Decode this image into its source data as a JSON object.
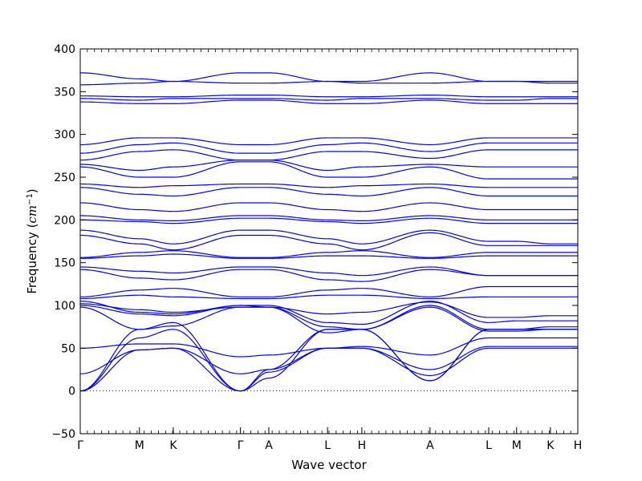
{
  "chart_data": {
    "type": "line",
    "title": "",
    "xlabel": "Wave vector",
    "ylabel_text": "Frequency (",
    "ylabel_unit_base": "cm",
    "ylabel_unit_exp": "−1",
    "ylabel_close": ")",
    "ylim": [
      -50,
      400
    ],
    "yticks": [
      -50,
      0,
      50,
      100,
      150,
      200,
      250,
      300,
      350,
      400
    ],
    "grid": false,
    "legend": "none",
    "series_color": "#0000ff",
    "zero_reference_line": 0,
    "xlim": [
      0,
      1
    ],
    "high_symmetry_points": [
      {
        "label": "Γ",
        "x": 0.0
      },
      {
        "label": "M",
        "x": 0.119
      },
      {
        "label": "K",
        "x": 0.187
      },
      {
        "label": "Γ",
        "x": 0.322
      },
      {
        "label": "A",
        "x": 0.379
      },
      {
        "label": "L",
        "x": 0.497
      },
      {
        "label": "H",
        "x": 0.566
      },
      {
        "label": "A",
        "x": 0.703
      },
      {
        "label": "L",
        "x": 0.821
      },
      {
        "label": "M",
        "x": 0.877
      },
      {
        "label": "K",
        "x": 0.945
      },
      {
        "label": "H",
        "x": 1.0
      }
    ],
    "minor_tick_count": 70,
    "bands": [
      [
        0,
        72,
        80,
        0,
        15,
        72,
        72,
        12,
        72,
        72,
        72,
        72
      ],
      [
        0,
        62,
        72,
        0,
        25,
        72,
        72,
        12,
        72,
        72,
        72,
        72
      ],
      [
        0,
        48,
        50,
        0,
        22,
        50,
        50,
        18,
        50,
        50,
        50,
        50
      ],
      [
        20,
        48,
        50,
        20,
        25,
        50,
        50,
        25,
        52,
        52,
        52,
        52
      ],
      [
        50,
        55,
        55,
        40,
        42,
        50,
        52,
        42,
        62,
        62,
        62,
        62
      ],
      [
        98,
        72,
        76,
        98,
        98,
        68,
        72,
        98,
        70,
        70,
        72,
        72
      ],
      [
        100,
        90,
        88,
        100,
        98,
        75,
        72,
        100,
        72,
        72,
        75,
        75
      ],
      [
        105,
        92,
        90,
        100,
        100,
        80,
        78,
        105,
        80,
        82,
        82,
        82
      ],
      [
        102,
        95,
        92,
        98,
        98,
        90,
        92,
        104,
        86,
        86,
        88,
        88
      ],
      [
        110,
        118,
        120,
        110,
        110,
        118,
        120,
        110,
        122,
        122,
        122,
        122
      ],
      [
        108,
        112,
        110,
        108,
        108,
        112,
        112,
        108,
        110,
        110,
        110,
        110
      ],
      [
        142,
        132,
        130,
        142,
        142,
        130,
        128,
        142,
        135,
        135,
        135,
        135
      ],
      [
        145,
        140,
        138,
        145,
        145,
        138,
        135,
        145,
        135,
        135,
        135,
        135
      ],
      [
        155,
        158,
        160,
        155,
        155,
        158,
        158,
        155,
        158,
        158,
        158,
        158
      ],
      [
        156,
        162,
        164,
        156,
        156,
        162,
        164,
        156,
        162,
        162,
        162,
        162
      ],
      [
        182,
        172,
        165,
        182,
        182,
        172,
        165,
        185,
        170,
        170,
        170,
        170
      ],
      [
        188,
        178,
        172,
        188,
        188,
        178,
        172,
        188,
        175,
        175,
        172,
        172
      ],
      [
        200,
        198,
        196,
        202,
        202,
        198,
        196,
        202,
        196,
        196,
        196,
        196
      ],
      [
        205,
        200,
        199,
        205,
        205,
        200,
        199,
        205,
        200,
        200,
        200,
        200
      ],
      [
        220,
        212,
        210,
        220,
        220,
        212,
        210,
        220,
        212,
        212,
        212,
        212
      ],
      [
        238,
        230,
        228,
        238,
        238,
        230,
        228,
        238,
        228,
        228,
        228,
        228
      ],
      [
        242,
        238,
        240,
        242,
        242,
        238,
        240,
        242,
        238,
        238,
        238,
        238
      ],
      [
        262,
        250,
        250,
        268,
        268,
        250,
        250,
        262,
        248,
        248,
        248,
        248
      ],
      [
        265,
        258,
        262,
        270,
        270,
        258,
        262,
        265,
        262,
        262,
        262,
        262
      ],
      [
        270,
        280,
        282,
        270,
        270,
        280,
        280,
        272,
        282,
        282,
        282,
        282
      ],
      [
        278,
        288,
        290,
        278,
        278,
        288,
        290,
        280,
        290,
        290,
        290,
        290
      ],
      [
        288,
        296,
        296,
        288,
        288,
        296,
        296,
        288,
        296,
        296,
        296,
        296
      ],
      [
        338,
        336,
        336,
        340,
        340,
        336,
        336,
        340,
        336,
        336,
        336,
        336
      ],
      [
        342,
        340,
        342,
        342,
        342,
        340,
        342,
        342,
        340,
        340,
        342,
        342
      ],
      [
        345,
        344,
        344,
        346,
        346,
        344,
        344,
        346,
        344,
        344,
        344,
        344
      ],
      [
        358,
        360,
        362,
        372,
        372,
        362,
        362,
        372,
        362,
        362,
        362,
        362
      ],
      [
        372,
        365,
        362,
        360,
        360,
        362,
        360,
        360,
        362,
        362,
        360,
        360
      ]
    ]
  }
}
